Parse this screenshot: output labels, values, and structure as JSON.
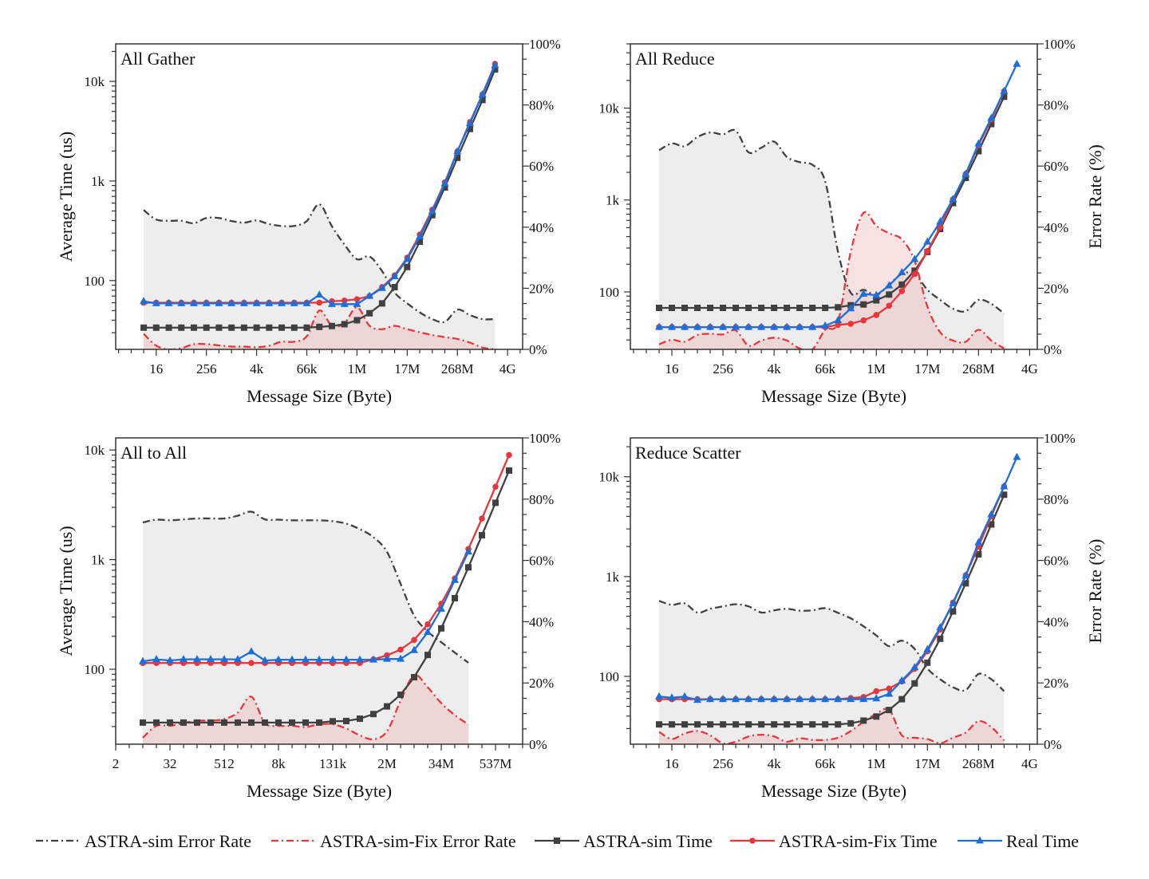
{
  "legend": {
    "items": [
      {
        "name": "ASTRA-sim Error Rate",
        "key": "gray_err"
      },
      {
        "name": "ASTRA-sim-Fix Error Rate",
        "key": "red_err"
      },
      {
        "name": "ASTRA-sim Time",
        "key": "black"
      },
      {
        "name": "ASTRA-sim-Fix Time",
        "key": "red"
      },
      {
        "name": "Real Time",
        "key": "blue"
      }
    ]
  },
  "colors": {
    "astra_sim": "#404040",
    "astra_sim_fix": "#e8363c",
    "real": "#1c6fd8",
    "gray_fill": "#ededed",
    "red_fill": "#e9a4a4"
  },
  "chart_data": [
    {
      "type": "line",
      "title": "All Gather",
      "xlabel": "Message Size (Byte)",
      "ylabel_left": "Average Time (us)",
      "ylabel_right": "",
      "x_unit": "log2(bytes)",
      "xlim_log2": [
        0.77,
        33.2
      ],
      "xticks": {
        "log2": [
          4,
          8,
          12,
          16,
          20,
          24,
          28,
          32
        ],
        "labels": [
          "16",
          "256",
          "4k",
          "66k",
          "1M",
          "17M",
          "268M",
          "4G"
        ]
      },
      "ylim_left": [
        20.4,
        23800
      ],
      "yticks_left": {
        "values": [
          100,
          1000,
          10000
        ],
        "labels": [
          "100",
          "1k",
          "10k"
        ]
      },
      "ylim_right": [
        0,
        100
      ],
      "yticks_right": {
        "values": [
          0,
          20,
          40,
          60,
          80,
          100
        ],
        "labels": [
          "0%",
          "20%",
          "40%",
          "60%",
          "80%",
          "100%"
        ]
      },
      "series": [
        {
          "key": "gray_err",
          "axis": "right",
          "start_log2": 3,
          "values": [
            45.6,
            42.5,
            42.1,
            42.1,
            41.3,
            43,
            43,
            42,
            41.5,
            42.2,
            41,
            40.4,
            40.4,
            42,
            47.5,
            40.3,
            34.3,
            29.5,
            30.4,
            25.6,
            18.6,
            15.1,
            12.1,
            9.9,
            9.0,
            13,
            11.2,
            9.9,
            9.9
          ]
        },
        {
          "key": "red_err",
          "axis": "right",
          "start_log2": 3,
          "values": [
            5.1,
            1.2,
            0,
            0.4,
            1.7,
            1.7,
            1.3,
            0.9,
            0.9,
            0.7,
            1.2,
            2.5,
            2.5,
            4.3,
            12.7,
            7.7,
            8.6,
            13.8,
            7.7,
            6.6,
            7.7,
            6.6,
            5.6,
            4.7,
            4.0,
            3.4,
            2.2,
            0.6,
            0
          ]
        },
        {
          "key": "black",
          "axis": "left",
          "start_log2": 3,
          "values": [
            33.7,
            33.7,
            33.7,
            33.7,
            33.7,
            33.7,
            33.7,
            33.7,
            33.7,
            33.7,
            33.7,
            33.7,
            33.7,
            33.7,
            34.3,
            35,
            36.5,
            40,
            47,
            59,
            86,
            137,
            246,
            454,
            860,
            1710,
            3330,
            6500,
            13200
          ]
        },
        {
          "key": "red",
          "axis": "left",
          "start_log2": 3,
          "values": [
            60,
            60,
            60,
            60,
            60,
            60,
            60,
            60,
            60,
            60,
            60,
            60,
            60,
            60,
            60,
            62,
            63,
            65,
            70,
            86,
            113,
            170,
            290,
            515,
            970,
            1980,
            3900,
            7400,
            15000
          ]
        },
        {
          "key": "blue",
          "axis": "left",
          "start_log2": 3,
          "values": [
            62,
            59,
            59,
            59,
            59,
            59,
            59,
            59,
            59,
            59,
            59,
            59,
            59,
            59,
            72,
            58,
            58,
            58,
            70,
            84,
            110,
            164,
            277,
            497,
            946,
            1980,
            3800,
            7400,
            14500
          ]
        }
      ]
    },
    {
      "type": "line",
      "title": "All Reduce",
      "xlabel": "Message Size (Byte)",
      "ylabel_left": "",
      "ylabel_right": "Error Rate (%)",
      "x_unit": "log2(bytes)",
      "xlim_log2": [
        0.75,
        32.6
      ],
      "xticks": {
        "log2": [
          4,
          8,
          12,
          16,
          20,
          24,
          28,
          32
        ],
        "labels": [
          "16",
          "256",
          "4k",
          "66k",
          "1M",
          "17M",
          "268M",
          "4G"
        ]
      },
      "ylim_left": [
        23.7,
        50000
      ],
      "yticks_left": {
        "values": [
          100,
          1000,
          10000
        ],
        "labels": [
          "100",
          "1k",
          "10k"
        ]
      },
      "ylim_right": [
        0,
        100
      ],
      "yticks_right": {
        "values": [
          0,
          20,
          40,
          60,
          80,
          100
        ],
        "labels": [
          "0%",
          "20%",
          "40%",
          "60%",
          "80%",
          "100%"
        ]
      },
      "series": [
        {
          "key": "gray_err",
          "axis": "right",
          "start_log2": 3,
          "values": [
            65.2,
            67.4,
            66.5,
            69.5,
            71,
            70.4,
            71.6,
            64.5,
            66,
            68,
            63,
            61.3,
            60.4,
            55,
            32,
            18.5,
            19.5,
            17.8,
            21.2,
            24.7,
            24.7,
            19.5,
            16.2,
            13.3,
            12.5,
            16.2,
            14.9,
            11.7
          ]
        },
        {
          "key": "red_err",
          "axis": "right",
          "start_log2": 3,
          "values": [
            1.7,
            3.1,
            2.5,
            4.7,
            5.1,
            4.9,
            6.2,
            1.2,
            2.9,
            3.8,
            2.9,
            0.3,
            0,
            6.4,
            9,
            32,
            44.7,
            40.4,
            38,
            36,
            29,
            14,
            5.6,
            2.9,
            2.5,
            6.4,
            2.9,
            0.3
          ]
        },
        {
          "key": "black",
          "axis": "left",
          "start_log2": 3,
          "values": [
            67,
            67,
            67,
            67,
            67,
            67,
            67,
            67,
            67,
            67,
            67,
            67,
            67,
            67,
            68,
            71.6,
            73,
            81,
            93.6,
            120,
            170,
            272,
            484,
            925,
            1740,
            3400,
            6700,
            13300
          ]
        },
        {
          "key": "red",
          "axis": "left",
          "start_log2": 3,
          "values": [
            41.4,
            41.4,
            41.4,
            41.4,
            41.4,
            41.4,
            41.4,
            41.4,
            41.4,
            41.4,
            41.4,
            41.4,
            41.4,
            41.4,
            43.8,
            45,
            49,
            56,
            70.7,
            102,
            157,
            278,
            505,
            1020,
            1920,
            3950,
            7500,
            15300
          ]
        },
        {
          "key": "blue",
          "axis": "left",
          "start_log2": 3,
          "values": [
            41.4,
            41.4,
            41.4,
            41.4,
            41.4,
            41.4,
            41.4,
            41.4,
            41.4,
            41.4,
            41.4,
            41.4,
            41.4,
            42.8,
            49,
            66,
            95,
            92,
            117,
            163,
            227,
            350,
            580,
            1020,
            1920,
            4100,
            7800,
            15300,
            30200
          ]
        }
      ]
    },
    {
      "type": "line",
      "title": "All to All",
      "xlabel": "Message Size (Byte)",
      "ylabel_left": "Average Time (us)",
      "ylabel_right": "",
      "x_unit": "log2(bytes)",
      "xlim_log2": [
        1,
        31
      ],
      "xticks": {
        "log2": [
          1,
          5,
          9,
          13,
          17,
          21,
          25,
          29
        ],
        "labels": [
          "2",
          "32",
          "512",
          "8k",
          "131k",
          "2M",
          "34M",
          "537M"
        ]
      },
      "ylim_left": [
        20.7,
        12900
      ],
      "yticks_left": {
        "values": [
          100,
          1000,
          10000
        ],
        "labels": [
          "100",
          "1k",
          "10k"
        ]
      },
      "ylim_right": [
        0,
        100
      ],
      "yticks_right": {
        "values": [
          0,
          20,
          40,
          60,
          80,
          100
        ],
        "labels": [
          "0%",
          "20%",
          "40%",
          "60%",
          "80%",
          "100%"
        ]
      },
      "series": [
        {
          "key": "gray_err",
          "axis": "right",
          "start_log2": 3,
          "values": [
            72.4,
            73.3,
            73.1,
            73.4,
            73.7,
            73.7,
            73.7,
            74.6,
            75.9,
            73.4,
            73.3,
            73.1,
            73.1,
            73.1,
            72.8,
            72,
            70.2,
            67.6,
            62.8,
            52.4,
            42,
            36.8,
            33.3,
            29.9,
            26.6
          ]
        },
        {
          "key": "red_err",
          "axis": "right",
          "start_log2": 3,
          "values": [
            2.1,
            6,
            6,
            6.9,
            7.7,
            7.7,
            8.2,
            10.3,
            15.5,
            6.9,
            6,
            6,
            5.6,
            6.5,
            6.5,
            5.1,
            2.9,
            1.6,
            4.2,
            14.2,
            22.5,
            18.6,
            13.4,
            9.5,
            6.4
          ]
        },
        {
          "key": "black",
          "axis": "left",
          "start_log2": 3,
          "values": [
            32.6,
            32.6,
            32.6,
            32.6,
            32.6,
            32.6,
            32.6,
            32.6,
            32.6,
            32.6,
            32.6,
            32.6,
            32.6,
            32.6,
            33.5,
            33.7,
            35.4,
            39,
            45.8,
            58.5,
            84.6,
            135,
            236,
            445,
            850,
            1670,
            3300,
            6500
          ]
        },
        {
          "key": "red",
          "axis": "left",
          "start_log2": 3,
          "values": [
            114,
            114,
            114,
            114,
            114,
            114,
            114,
            114,
            114,
            114,
            114,
            114,
            114,
            114,
            114,
            114,
            114,
            123,
            134,
            151,
            185,
            257,
            396,
            674,
            1250,
            2370,
            4630,
            9000
          ]
        },
        {
          "key": "blue",
          "axis": "left",
          "start_log2": 3,
          "values": [
            118,
            123,
            120,
            123,
            123,
            123,
            123,
            123,
            145,
            120,
            122,
            122,
            122,
            122,
            122,
            122,
            122,
            122,
            124,
            124,
            149,
            218,
            355,
            650,
            1180
          ]
        }
      ]
    },
    {
      "type": "line",
      "title": "Reduce Scatter",
      "xlabel": "Message Size (Byte)",
      "ylabel_left": "",
      "ylabel_right": "Error Rate (%)",
      "x_unit": "log2(bytes)",
      "xlim_log2": [
        0.75,
        32.6
      ],
      "xticks": {
        "log2": [
          4,
          8,
          12,
          16,
          20,
          24,
          28,
          32
        ],
        "labels": [
          "16",
          "256",
          "4k",
          "66k",
          "1M",
          "17M",
          "268M",
          "4G"
        ]
      },
      "ylim_left": [
        20.9,
        24500
      ],
      "yticks_left": {
        "values": [
          100,
          1000,
          10000
        ],
        "labels": [
          "100",
          "1k",
          "10k"
        ]
      },
      "ylim_right": [
        0,
        100
      ],
      "yticks_right": {
        "values": [
          0,
          20,
          40,
          60,
          80,
          100
        ],
        "labels": [
          "0%",
          "20%",
          "40%",
          "60%",
          "80%",
          "100%"
        ]
      },
      "series": [
        {
          "key": "gray_err",
          "axis": "right",
          "start_log2": 3,
          "values": [
            46.8,
            45.5,
            46,
            43,
            44.2,
            45,
            45.7,
            45,
            43,
            43.7,
            44.2,
            43.6,
            43.7,
            44.4,
            42.9,
            41.1,
            38.5,
            35.5,
            32,
            33.8,
            31.1,
            24.7,
            21.2,
            18.6,
            17.7,
            22.9,
            21.2,
            17.3
          ]
        },
        {
          "key": "red_err",
          "axis": "right",
          "start_log2": 3,
          "values": [
            4,
            1.7,
            3.5,
            4.3,
            2.9,
            0.3,
            0.8,
            2.5,
            3.1,
            2.5,
            0.8,
            1.9,
            1.4,
            1.4,
            2.1,
            4.3,
            7.3,
            9.9,
            11.2,
            2.9,
            2.1,
            1.7,
            0.3,
            2.1,
            3.8,
            7.5,
            5.6,
            1.2
          ]
        },
        {
          "key": "black",
          "axis": "left",
          "start_log2": 3,
          "values": [
            33,
            33,
            33,
            33,
            33,
            33,
            33,
            33,
            33,
            33,
            33,
            33,
            33,
            33,
            33,
            33.8,
            36,
            39.6,
            46,
            59,
            85,
            137,
            238,
            447,
            855,
            1670,
            3330,
            6600
          ]
        },
        {
          "key": "red",
          "axis": "left",
          "start_log2": 3,
          "values": [
            59,
            59,
            59,
            59,
            59,
            59,
            59,
            59,
            59,
            59,
            59,
            59,
            59,
            59,
            59,
            60.6,
            62,
            71,
            75.4,
            89,
            119,
            178,
            295,
            548,
            1030,
            2000,
            4000,
            8000
          ]
        },
        {
          "key": "blue",
          "axis": "left",
          "start_log2": 3,
          "values": [
            62.7,
            61,
            62.7,
            57.9,
            59,
            59,
            59,
            59,
            59,
            59,
            59,
            59,
            59,
            59,
            59,
            59,
            59,
            60,
            66.7,
            90.6,
            123,
            186,
            309,
            538,
            1020,
            2200,
            4200,
            8000,
            15700
          ]
        }
      ]
    }
  ]
}
